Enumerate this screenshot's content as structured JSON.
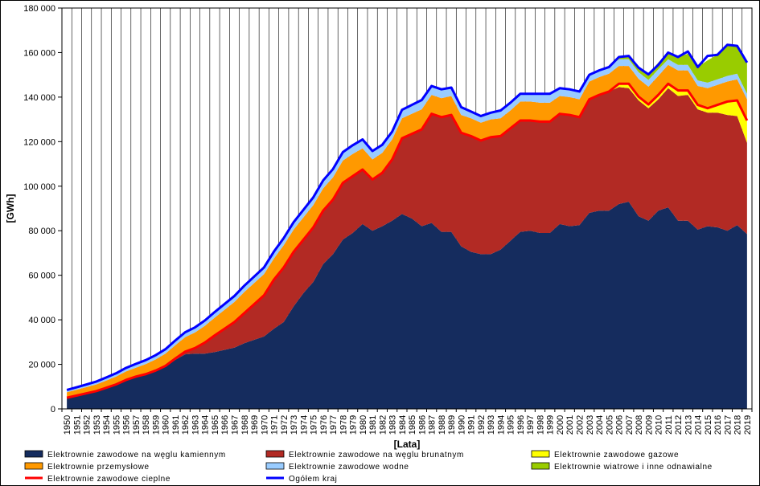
{
  "chart_data": {
    "type": "area",
    "xlabel": "[Lata]",
    "ylabel": "[GWh]",
    "ylim": [
      0,
      180000
    ],
    "yticks": [
      0,
      20000,
      40000,
      60000,
      80000,
      100000,
      120000,
      140000,
      160000,
      180000
    ],
    "ytick_labels": [
      "0",
      "20 000",
      "40 000",
      "60 000",
      "80 000",
      "100 000",
      "120 000",
      "140 000",
      "160 000",
      "180 000"
    ],
    "grid": "vertical",
    "legend_position": "bottom",
    "x": [
      1950,
      1951,
      1952,
      1953,
      1954,
      1955,
      1956,
      1957,
      1958,
      1959,
      1960,
      1961,
      1962,
      1963,
      1964,
      1965,
      1966,
      1967,
      1968,
      1969,
      1970,
      1971,
      1972,
      1973,
      1974,
      1975,
      1976,
      1977,
      1978,
      1979,
      1980,
      1981,
      1982,
      1983,
      1984,
      1985,
      1986,
      1987,
      1988,
      1989,
      1990,
      1991,
      1992,
      1993,
      1994,
      1995,
      1996,
      1997,
      1998,
      1999,
      2000,
      2001,
      2002,
      2003,
      2004,
      2005,
      2006,
      2007,
      2008,
      2009,
      2010,
      2011,
      2012,
      2013,
      2014,
      2015,
      2016,
      2017,
      2018,
      2019
    ],
    "series": [
      {
        "name": "Elektrownie zawodowe na węglu kamiennym",
        "kind": "area",
        "color": "#152c5e",
        "values": [
          5000,
          6000,
          7000,
          8000,
          9500,
          11000,
          13000,
          14500,
          15500,
          17000,
          19000,
          22000,
          24500,
          24800,
          24800,
          25500,
          26500,
          27500,
          29500,
          31000,
          32500,
          36000,
          39000,
          46000,
          52000,
          57000,
          65000,
          69500,
          76000,
          79000,
          83000,
          80000,
          82000,
          84500,
          87500,
          85500,
          82000,
          83500,
          79500,
          79500,
          73000,
          70500,
          69500,
          69500,
          71500,
          75500,
          79500,
          80000,
          79000,
          79000,
          83000,
          82000,
          82500,
          88000,
          89000,
          89000,
          92000,
          93000,
          86500,
          84500,
          89000,
          90500,
          84500,
          84500,
          80500,
          82000,
          81500,
          80000,
          82500,
          78500
        ]
      },
      {
        "name": "Elektrownie zawodowe na węglu brunatnym",
        "kind": "area",
        "color": "#b22a24",
        "values": [
          0,
          0,
          0,
          0,
          0,
          0,
          0,
          0,
          100,
          200,
          300,
          600,
          1200,
          2500,
          5000,
          7500,
          9500,
          11500,
          13500,
          16000,
          18500,
          22000,
          24500,
          24500,
          24000,
          24500,
          24000,
          24500,
          25500,
          25500,
          24500,
          23000,
          24000,
          27500,
          34000,
          38000,
          43500,
          49000,
          51500,
          52500,
          51000,
          52000,
          51000,
          52500,
          51000,
          50500,
          50000,
          49500,
          50000,
          50000,
          49500,
          50000,
          48500,
          51000,
          52000,
          53500,
          52500,
          51000,
          52000,
          50500,
          50000,
          53500,
          56000,
          56500,
          54000,
          51000,
          51500,
          52000,
          49000,
          41000
        ]
      },
      {
        "name": "Elektrownie zawodowe gazowe",
        "kind": "area",
        "color": "#ffff00",
        "values": [
          0,
          0,
          0,
          0,
          0,
          0,
          0,
          0,
          0,
          0,
          0,
          0,
          0,
          0,
          0,
          0,
          0,
          0,
          0,
          0,
          0,
          0,
          0,
          0,
          0,
          0,
          0,
          0,
          0,
          0,
          0,
          0,
          0,
          0,
          0,
          0,
          0,
          0,
          0,
          0,
          0,
          0,
          0,
          0,
          0,
          0,
          0,
          0,
          0,
          0,
          0,
          0,
          0,
          0,
          0,
          0,
          1500,
          2000,
          1700,
          1700,
          2000,
          2000,
          2500,
          2000,
          2000,
          2000,
          3500,
          6000,
          7000,
          10000
        ]
      },
      {
        "name": "Elektrownie zawodowe cieplne",
        "kind": "line",
        "color": "#ff0000",
        "values": [
          5000,
          6000,
          7000,
          8000,
          9500,
          11000,
          13000,
          14500,
          15600,
          17200,
          19300,
          22600,
          25700,
          27300,
          29800,
          33000,
          36000,
          39000,
          43000,
          47000,
          51000,
          58000,
          63500,
          70500,
          76000,
          81500,
          89000,
          94000,
          101500,
          104500,
          107500,
          103000,
          106000,
          112000,
          121500,
          123500,
          125500,
          132500,
          131000,
          132000,
          124000,
          122500,
          120500,
          122000,
          122500,
          126000,
          129500,
          129500,
          129000,
          129000,
          132500,
          132000,
          131000,
          139000,
          141000,
          142500,
          146000,
          146000,
          140200,
          136700,
          141000,
          146000,
          143000,
          143000,
          136500,
          135000,
          136500,
          138000,
          138500,
          129500
        ]
      },
      {
        "name": "Elektrownie przemysłowe",
        "kind": "area",
        "color": "#ff9900",
        "values": [
          2500,
          2600,
          2800,
          3000,
          3200,
          3500,
          3800,
          4000,
          4500,
          5000,
          5500,
          6000,
          6500,
          7000,
          7500,
          8000,
          8500,
          9000,
          9500,
          9500,
          9500,
          9500,
          10000,
          10000,
          10000,
          10000,
          10000,
          10000,
          10000,
          10000,
          9500,
          9000,
          9000,
          9000,
          9000,
          9000,
          9000,
          8500,
          8500,
          8500,
          8000,
          8000,
          8000,
          8000,
          8000,
          8000,
          8500,
          8500,
          8500,
          8500,
          8000,
          8000,
          8000,
          8000,
          8000,
          8000,
          8000,
          8000,
          8000,
          8000,
          8500,
          8500,
          9000,
          9000,
          8500,
          9000,
          9000,
          9000,
          9500,
          9500
        ]
      },
      {
        "name": "Elektrownie zawodowe wodne",
        "kind": "area",
        "color": "#99ccff",
        "values": [
          1000,
          1100,
          1200,
          1300,
          1400,
          1500,
          1600,
          1700,
          1800,
          1900,
          2000,
          2100,
          2200,
          2300,
          2400,
          2500,
          2600,
          2700,
          2800,
          2900,
          3000,
          3100,
          3200,
          3300,
          3400,
          3500,
          3600,
          3700,
          3800,
          3900,
          4000,
          3800,
          3600,
          3500,
          3800,
          4000,
          4200,
          4000,
          4000,
          3800,
          3500,
          3000,
          3000,
          3000,
          3500,
          3500,
          3500,
          3500,
          4000,
          4000,
          3500,
          3500,
          3500,
          3000,
          3000,
          3000,
          3000,
          3000,
          3000,
          3000,
          3000,
          2500,
          2500,
          2500,
          2500,
          2500,
          2500,
          2500,
          2500,
          2500
        ]
      },
      {
        "name": "Elektrownie wiatrowe i inne odnawialne",
        "kind": "area",
        "color": "#99cc00",
        "values": [
          0,
          0,
          0,
          0,
          0,
          0,
          0,
          0,
          0,
          0,
          0,
          0,
          0,
          0,
          0,
          0,
          0,
          0,
          0,
          0,
          0,
          0,
          0,
          0,
          0,
          0,
          0,
          0,
          0,
          0,
          0,
          0,
          0,
          0,
          0,
          0,
          0,
          0,
          0,
          0,
          0,
          0,
          0,
          0,
          0,
          0,
          0,
          0,
          0,
          0,
          0,
          0,
          0,
          0,
          0,
          0,
          1000,
          1500,
          2000,
          2500,
          3000,
          3000,
          3500,
          5000,
          6000,
          10000,
          11000,
          14000,
          13000,
          14000
        ]
      },
      {
        "name": "Ogółem kraj",
        "kind": "line",
        "color": "#0000ff",
        "values": [
          8500,
          9700,
          11000,
          12300,
          14100,
          16000,
          18400,
          20200,
          21900,
          24100,
          26800,
          30700,
          34400,
          36600,
          39700,
          43500,
          47100,
          50700,
          55300,
          59400,
          63500,
          70600,
          76700,
          83800,
          89400,
          95000,
          102600,
          107700,
          115300,
          118400,
          121000,
          115800,
          118600,
          124500,
          134300,
          136500,
          138700,
          145000,
          143500,
          144300,
          135500,
          133500,
          131500,
          133000,
          134000,
          137500,
          141500,
          141500,
          141500,
          141500,
          144000,
          143500,
          142500,
          150000,
          152000,
          153500,
          158000,
          158500,
          153200,
          150200,
          154500,
          160000,
          158000,
          160500,
          153500,
          158500,
          159000,
          163500,
          163000,
          155500
        ]
      }
    ],
    "legend": [
      "Elektrownie zawodowe na węglu kamiennym",
      "Elektrownie zawodowe na węglu brunatnym",
      "Elektrownie zawodowe gazowe",
      "Elektrownie przemysłowe",
      "Elektrownie zawodowe wodne",
      "Elektrownie wiatrowe i inne odnawialne",
      "Elektrownie zawodowe cieplne",
      "Ogółem kraj"
    ]
  }
}
